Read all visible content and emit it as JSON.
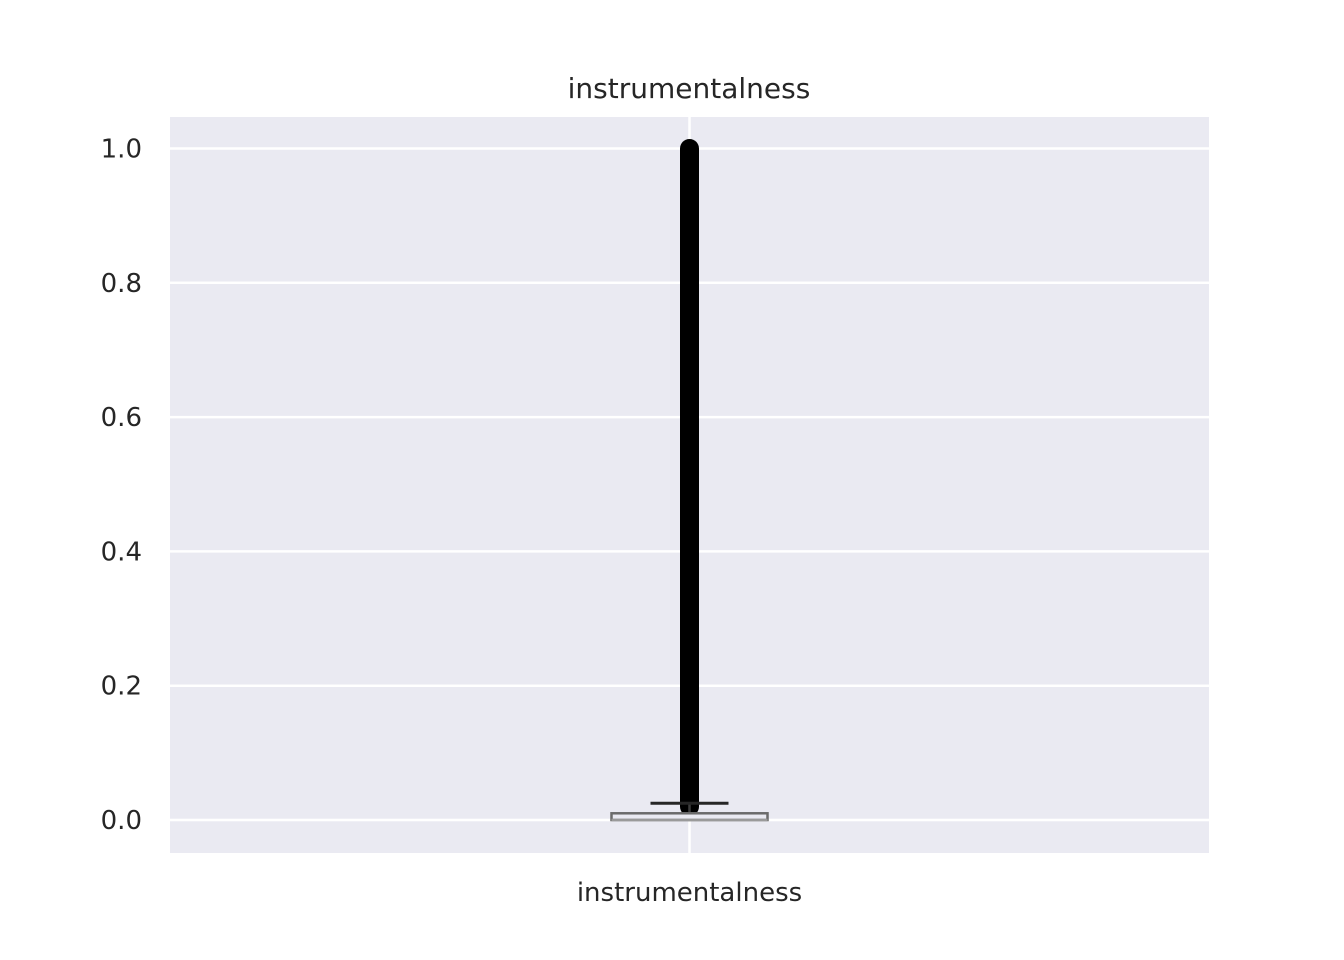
{
  "chart_data": {
    "type": "box",
    "title": "instrumentalness",
    "categories": [
      "instrumentalness"
    ],
    "ylim": [
      -0.05,
      1.05
    ],
    "yticks": [
      0.0,
      0.2,
      0.4,
      0.6,
      0.8,
      1.0
    ],
    "ytick_labels": [
      "0.0",
      "0.2",
      "0.4",
      "0.6",
      "0.8",
      "1.0"
    ],
    "grid": true,
    "background_color": "#eaeaf2",
    "grid_color": "#ffffff",
    "boxes": [
      {
        "name": "instrumentalness",
        "q1": 0.0,
        "median": 0.0,
        "q3": 0.01,
        "whisker_low": 0.0,
        "whisker_high": 0.025,
        "outlier_range": [
          0.02,
          1.0
        ]
      }
    ]
  }
}
